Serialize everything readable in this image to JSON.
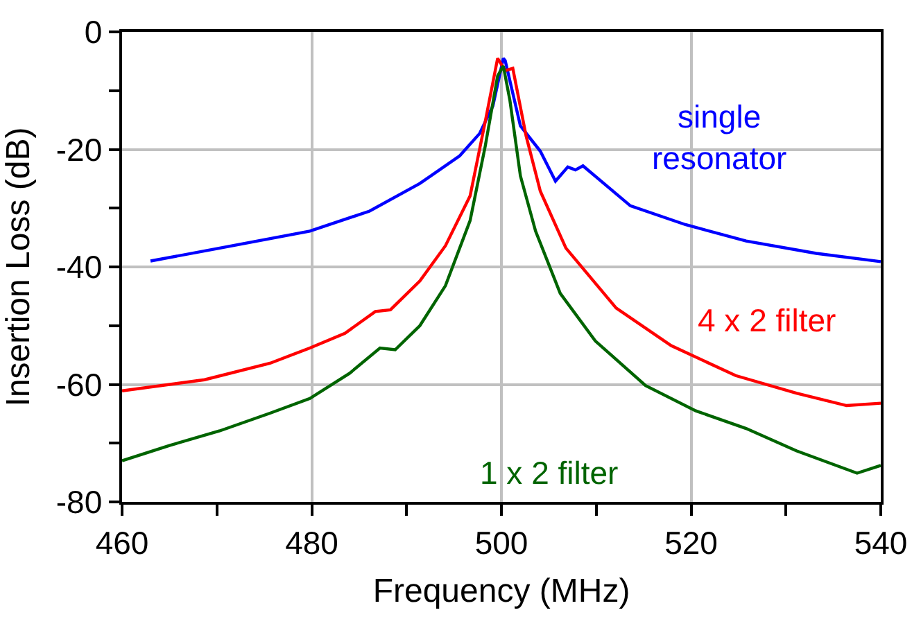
{
  "chart_data": {
    "type": "line",
    "xlabel": "Frequency (MHz)",
    "ylabel": "Insertion Loss (dB)",
    "xlim": [
      460,
      540
    ],
    "ylim": [
      -80,
      0
    ],
    "xticks": [
      460,
      {
        "value": 470,
        "label": null
      },
      480,
      {
        "value": 490,
        "label": null
      },
      500,
      {
        "value": 510,
        "label": null
      },
      520,
      {
        "value": 530,
        "label": null
      },
      540
    ],
    "yticks": [
      -80,
      {
        "value": -70,
        "label": null
      },
      -60,
      {
        "value": -50,
        "label": null
      },
      -40,
      {
        "value": -30,
        "label": null
      },
      -20,
      {
        "value": -10,
        "label": null
      },
      0
    ],
    "grid": true,
    "legend": false,
    "marker": "none",
    "line_style": "solid",
    "series": [
      {
        "name": "single resonator",
        "color": "#0000ff",
        "x": [
          463.0,
          470.3,
          479.8,
          486.1,
          491.4,
          495.6,
          497.7,
          499.1,
          500.2,
          500.4,
          502.0,
          504.1,
          505.7,
          507.0,
          507.8,
          508.6,
          513.6,
          519.4,
          525.8,
          533.2,
          540
        ],
        "values": [
          -39.0,
          -36.8,
          -33.9,
          -30.5,
          -25.8,
          -21.1,
          -17.3,
          -12.6,
          -4.5,
          -4.9,
          -16.0,
          -20.3,
          -25.4,
          -23.0,
          -23.5,
          -22.8,
          -29.6,
          -32.8,
          -35.6,
          -37.7,
          -39.1
        ]
      },
      {
        "name": "4 x 2 filter",
        "color": "#ff0000",
        "x": [
          460,
          468.7,
          475.6,
          479.8,
          483.5,
          486.7,
          488.3,
          491.4,
          494.1,
          496.7,
          498.3,
          499.6,
          500.4,
          501.2,
          502.6,
          504.1,
          506.8,
          512.1,
          517.9,
          524.7,
          531.1,
          536.4,
          540
        ],
        "values": [
          -61.1,
          -59.2,
          -56.4,
          -53.8,
          -51.3,
          -47.6,
          -47.3,
          -42.4,
          -36.4,
          -27.9,
          -15.2,
          -4.5,
          -6.6,
          -6.2,
          -17.7,
          -27.1,
          -36.8,
          -47.0,
          -53.4,
          -58.5,
          -61.5,
          -63.6,
          -63.2
        ]
      },
      {
        "name": "1 x 2 filter",
        "color": "#006400",
        "x": [
          460,
          465.0,
          470.3,
          475.6,
          479.8,
          484.0,
          487.2,
          488.8,
          491.4,
          494.1,
          496.7,
          498.3,
          499.6,
          500.2,
          500.9,
          502.0,
          503.6,
          506.2,
          509.9,
          515.2,
          520.5,
          525.8,
          531.1,
          537.5,
          540
        ],
        "values": [
          -73.0,
          -70.4,
          -67.9,
          -64.9,
          -62.4,
          -58.1,
          -53.8,
          -54.1,
          -50.0,
          -43.2,
          -32.1,
          -19.4,
          -7.5,
          -5.8,
          -11.7,
          -24.5,
          -33.9,
          -44.5,
          -52.6,
          -60.2,
          -64.5,
          -67.5,
          -71.3,
          -75.1,
          -73.8
        ]
      }
    ]
  }
}
